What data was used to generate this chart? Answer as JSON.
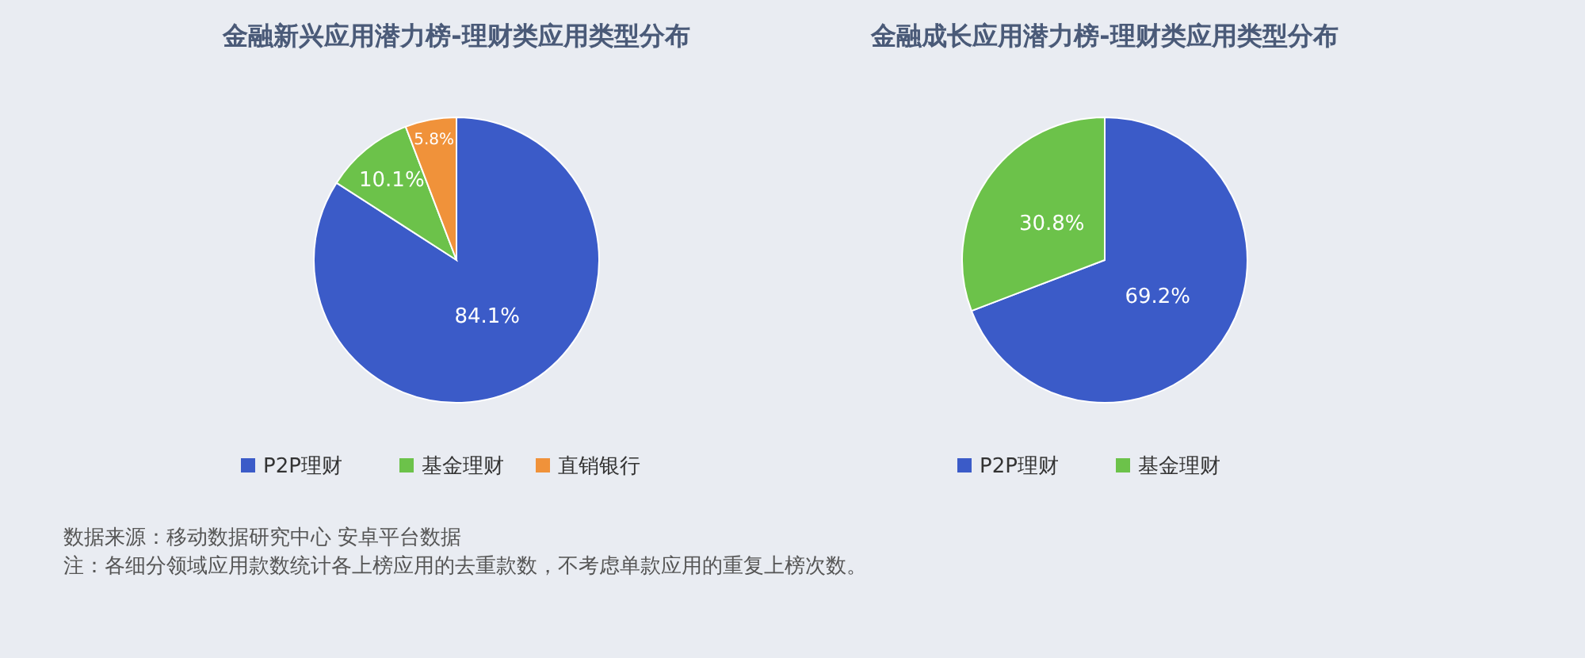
{
  "chart_data": [
    {
      "type": "pie",
      "title": "金融新兴应用潜力榜-理财类应用类型分布",
      "categories": [
        "P2P理财",
        "基金理财",
        "直销银行"
      ],
      "values": [
        84.1,
        10.1,
        5.8
      ],
      "colors": [
        "#3b5bc8",
        "#6cc24a",
        "#f0923a"
      ],
      "value_labels": [
        "84.1%",
        "10.1%",
        "5.8%"
      ],
      "legend": "bottom",
      "annotations": [
        "数据来源：移动数据研究中心   安卓平台数据",
        "注：各细分领域应用款数统计各上榜应用的去重款数，不考虑单款应用的重复上榜次数。"
      ]
    },
    {
      "type": "pie",
      "title": "金融成长应用潜力榜-理财类应用类型分布",
      "categories": [
        "P2P理财",
        "基金理财"
      ],
      "values": [
        69.2,
        30.8
      ],
      "colors": [
        "#3b5bc8",
        "#6cc24a"
      ],
      "value_labels": [
        "69.2%",
        "30.8%"
      ],
      "legend": "bottom"
    }
  ]
}
